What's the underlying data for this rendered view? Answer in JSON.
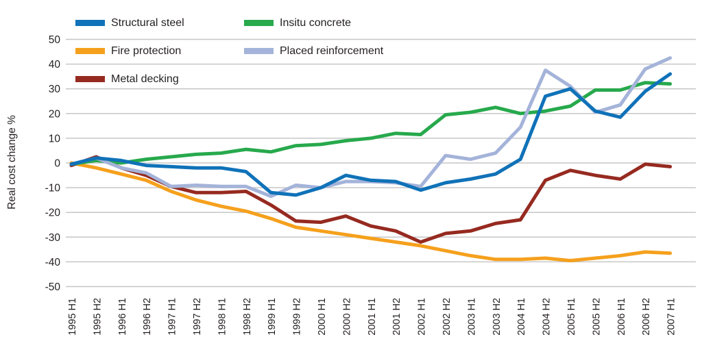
{
  "chart": {
    "y_axis_title": "Real cost change %"
  },
  "chart_data": {
    "type": "line",
    "title": "",
    "xlabel": "",
    "ylabel": "Real cost change %",
    "ylim": [
      -50,
      50
    ],
    "ytick_step": 10,
    "grid": "horizontal",
    "legend_position": "top-left-two-columns",
    "x_labels": [
      "1995 H1",
      "1995 H2",
      "1996 H1",
      "1996 H2",
      "1997 H1",
      "1997 H2",
      "1998 H1",
      "1998 H2",
      "1999 H1",
      "1999 H2",
      "2000 H1",
      "2000 H2",
      "2001 H1",
      "2001 H2",
      "2002 H1",
      "2002 H2",
      "2003 H1",
      "2003 H2",
      "2004 H1",
      "2004 H2",
      "2005 H1",
      "2005 H2",
      "2006 H1",
      "2006 H2",
      "2007 H1"
    ],
    "series": [
      {
        "name": "Structural steel",
        "color": "#1072b8",
        "values": [
          -0.5,
          2,
          1,
          -1,
          -1.5,
          -2,
          -2,
          -3.5,
          -12,
          -13,
          -10,
          -5,
          -7,
          -7.5,
          -11,
          -8,
          -6.5,
          -4.5,
          1.5,
          27,
          30,
          21,
          18.5,
          29,
          36
        ]
      },
      {
        "name": "Insitu concrete",
        "color": "#27a94c",
        "values": [
          -0.5,
          1,
          0,
          1.5,
          2.5,
          3.5,
          4,
          5.5,
          4.5,
          7,
          7.5,
          9,
          10,
          12,
          11.5,
          19.5,
          20.5,
          22.5,
          20,
          21,
          23,
          29.5,
          29.5,
          32.5,
          32
        ]
      },
      {
        "name": "Fire protection",
        "color": "#f5a01d",
        "values": [
          0,
          -2,
          -4.5,
          -7,
          -11.5,
          -15,
          -17.5,
          -19.5,
          -22.5,
          -26,
          -27.5,
          -29,
          -30.5,
          -32,
          -33.5,
          -35.5,
          -37.5,
          -39,
          -39,
          -38.5,
          -39.5,
          -38.5,
          -37.5,
          -36,
          -36.5
        ]
      },
      {
        "name": "Placed reinforcement",
        "color": "#a4b3d9",
        "values": [
          -0.5,
          2,
          -2,
          -4,
          -9.5,
          -9,
          -9.5,
          -9.5,
          -13.5,
          -9,
          -10,
          -7.5,
          -7.5,
          -8,
          -9.5,
          3,
          1.5,
          4,
          14.5,
          37.5,
          31,
          20.5,
          23.5,
          38,
          42.5
        ]
      },
      {
        "name": "Metal decking",
        "color": "#962a20",
        "values": [
          -1,
          2.5,
          -2,
          -5,
          -9.5,
          -12,
          -12,
          -11.5,
          -17,
          -23.5,
          -24,
          -21.5,
          -25.5,
          -27.5,
          -32,
          -28.5,
          -27.5,
          -24.5,
          -23,
          -7,
          -3,
          -5,
          -6.5,
          -0.5,
          -1.5
        ]
      }
    ],
    "legend_columns": [
      [
        0,
        2,
        4
      ],
      [
        1,
        3
      ]
    ],
    "draw_order": [
      2,
      4,
      1,
      3,
      0
    ]
  }
}
